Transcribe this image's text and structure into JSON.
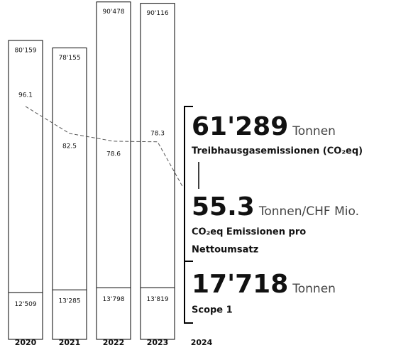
{
  "chart_data": {
    "type": "bar",
    "categories": [
      "2020",
      "2021",
      "2022",
      "2023",
      "2024"
    ],
    "series": [
      {
        "color": "#000000",
        "values": [
          80159,
          78155,
          90478,
          90116,
          61289
        ],
        "value_labels": [
          "80'159",
          "78'155",
          "90'478",
          "90'116",
          "61'289"
        ]
      },
      {
        "color": "#000000",
        "values": [
          12509,
          13285,
          13798,
          13819,
          17718
        ],
        "value_labels": [
          "12'509",
          "13'285",
          "13'798",
          "13'819",
          "17'718"
        ]
      },
      {
        "type": "line",
        "axis": "y2",
        "color": "#555555",
        "values": [
          96.1,
          82.5,
          78.6,
          78.3,
          55.3
        ]
      }
    ],
    "ylim": [
      0,
      91000
    ],
    "y2lim": [
      0,
      150
    ],
    "highlights": [
      {
        "unit": "Tonnen",
        "description": [
          "Treibhausgasemissionen (CO₂eq)"
        ]
      },
      {
        "unit": "Tonnen/CHF Mio.",
        "description": [
          "CO₂eq Emissionen pro",
          "Nettoumsatz"
        ]
      },
      {
        "unit": "Tonnen",
        "description": [
          "Scope 1"
        ]
      }
    ]
  }
}
